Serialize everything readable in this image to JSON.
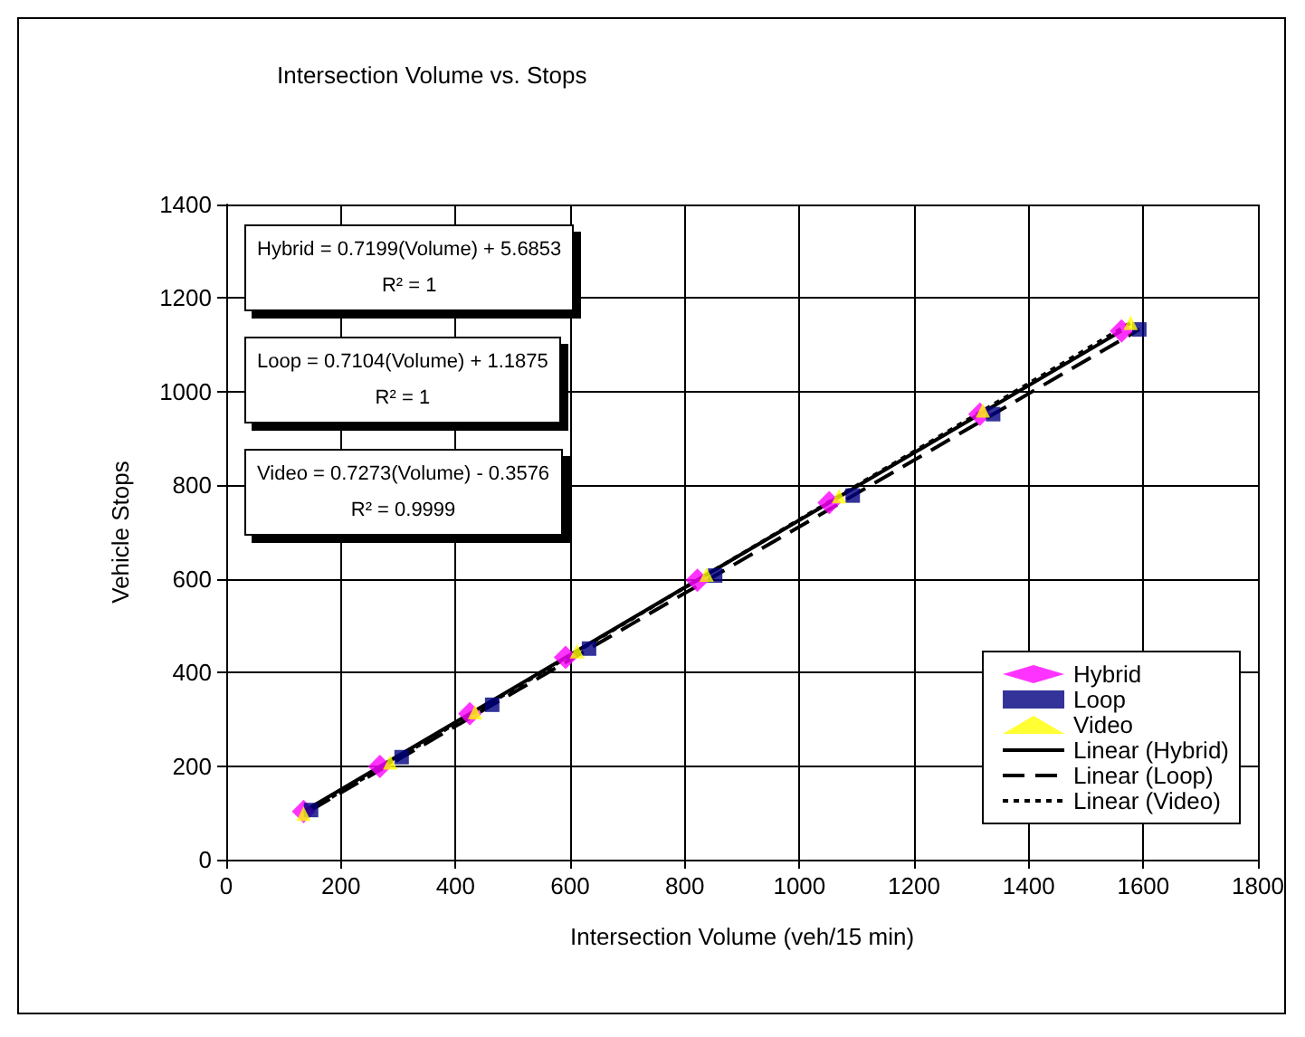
{
  "chart_data": {
    "type": "scatter",
    "title": "Intersection Volume vs. Stops",
    "xlabel": "Intersection Volume (veh/15 min)",
    "ylabel": "Vehicle Stops",
    "xlim": [
      0,
      1800
    ],
    "xticks": [
      0,
      200,
      400,
      600,
      800,
      1000,
      1200,
      1400,
      1600,
      1800
    ],
    "ylim": [
      0,
      1400
    ],
    "yticks": [
      0,
      200,
      400,
      600,
      800,
      1000,
      1200,
      1400
    ],
    "grid": true,
    "legend": "bottom right",
    "series": [
      {
        "name": "Hybrid",
        "color": "#ff00ff",
        "marker": "diamond",
        "x": [
          135,
          268,
          425,
          592,
          822,
          1052,
          1315,
          1562
        ],
        "values": [
          103,
          199,
          312,
          432,
          597,
          763,
          952,
          1130
        ]
      },
      {
        "name": "Loop",
        "color": "#000080",
        "marker": "square",
        "x": [
          148,
          306,
          464,
          633,
          853,
          1093,
          1338,
          1593
        ],
        "values": [
          106,
          219,
          331,
          451,
          607,
          778,
          952,
          1133
        ]
      },
      {
        "name": "Video",
        "color": "#ffff00",
        "marker": "triangle",
        "x": [
          135,
          286,
          434,
          612,
          838,
          1069,
          1320,
          1578
        ],
        "values": [
          98,
          208,
          315,
          445,
          609,
          777,
          960,
          1147
        ]
      },
      {
        "name": "Linear (Hybrid)",
        "type": "line",
        "color": "#000000",
        "marker": "none",
        "line_style": "solid",
        "x": [
          135,
          1562
        ],
        "values": [
          103,
          1130
        ]
      },
      {
        "name": "Linear (Loop)",
        "type": "line",
        "color": "#000000",
        "marker": "none",
        "line_style": "dashed",
        "x": [
          148,
          1593
        ],
        "values": [
          106,
          1133
        ]
      },
      {
        "name": "Linear (Video)",
        "type": "line",
        "color": "#000000",
        "marker": "none",
        "line_style": "dotted",
        "x": [
          135,
          1578
        ],
        "values": [
          98,
          1147
        ]
      }
    ],
    "annotations": [
      "Hybrid = 0.7199(Volume) + 5.6853\nR² = 1",
      "Loop = 0.7104(Volume) + 1.1875\nR² = 1",
      "Video = 0.7273(Volume) - 0.3576\nR² = 0.9999"
    ]
  }
}
